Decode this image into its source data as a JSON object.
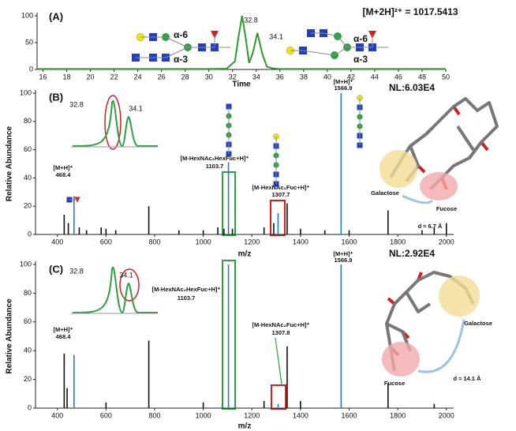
{
  "chart_data": [
    {
      "type": "line",
      "label": "(A)",
      "xlabel": "Time",
      "formula": "[M+2H]²⁺ = 1017.5413",
      "peak_labels": [
        32.8,
        34.1
      ],
      "linkage_labels": [
        "α-6",
        "α-3",
        "α-6",
        "α-3"
      ],
      "color": "#2e9a2e",
      "x": [
        15.5,
        20,
        25,
        30,
        31.5,
        32.2,
        32.5,
        32.8,
        33.1,
        33.4,
        33.7,
        34.1,
        34.5,
        34.9,
        35.4,
        36,
        40,
        45,
        50
      ],
      "values": [
        1,
        1,
        1,
        1,
        1.5,
        15,
        60,
        100,
        60,
        12,
        30,
        68,
        30,
        5,
        2,
        1,
        1,
        1,
        1
      ],
      "xlim": [
        15.5,
        50
      ],
      "xticks": [
        16,
        18,
        20,
        22,
        24,
        26,
        28,
        30,
        32,
        34,
        36,
        38,
        40,
        42,
        44,
        46,
        48,
        50
      ],
      "ylim": [
        0,
        100
      ],
      "yticks": [
        0,
        50,
        100
      ]
    },
    {
      "type": "stick",
      "label": "(B)",
      "nl": "NL:6.03E4",
      "xlabel": "m/z",
      "ylabel": "Relative Abundance",
      "x": [
        428,
        445,
        468.4,
        490,
        520,
        580,
        600,
        640,
        776,
        900,
        1000,
        1060,
        1085,
        1103.7,
        1120,
        1250,
        1290,
        1307.7,
        1345,
        1400,
        1500,
        1566.9,
        1600,
        1760,
        1900,
        1950,
        2000
      ],
      "values": [
        14,
        8,
        27,
        5,
        3,
        5,
        4,
        3,
        20,
        3,
        3,
        5,
        4,
        51,
        4,
        5,
        8,
        15,
        22,
        4,
        3,
        100,
        3,
        17,
        3,
        5,
        8
      ],
      "colors": [
        "#111",
        "#111",
        "#1f7fc4",
        "#111",
        "#111",
        "#111",
        "#111",
        "#111",
        "#111",
        "#111",
        "#111",
        "#111",
        "#111",
        "#1f7fc4",
        "#111",
        "#111",
        "#111",
        "#1f7fc4",
        "#111",
        "#111",
        "#111",
        "#1f7fc4",
        "#111",
        "#111",
        "#111",
        "#111",
        "#111"
      ],
      "xlim": [
        310,
        2030
      ],
      "xticks": [
        400,
        600,
        800,
        1000,
        1200,
        1400,
        1600,
        1800,
        2000
      ],
      "ylim": [
        0,
        100
      ],
      "yticks": [
        0,
        20,
        40,
        60,
        80,
        100
      ],
      "inset_labels": [
        32.8,
        34.1
      ],
      "ions": [
        {
          "label": "[M+H]⁺",
          "mz": 468.4
        },
        {
          "label": "[M-HexNAc₂HexFuc+H]⁺",
          "mz": 1103.7
        },
        {
          "label": "[M-HexNAc₂Fuc+H]⁺",
          "mz": 1307.7
        },
        {
          "label": "[M+H]⁺",
          "mz": 1566.9
        }
      ],
      "structure_labels": [
        "Galactose",
        "Fucose",
        "d ≈ 6.7 Å"
      ]
    },
    {
      "type": "stick",
      "label": "(C)",
      "nl": "NL:2.92E4",
      "xlabel": "m/z",
      "ylabel": "Relative Abundance",
      "x": [
        428,
        440,
        468.4,
        600,
        776,
        1000,
        1103.7,
        1250,
        1307.8,
        1345,
        1400,
        1566.9,
        1760,
        1950
      ],
      "values": [
        38,
        14,
        37,
        4,
        47,
        4,
        100,
        5,
        3,
        43,
        5,
        100,
        17,
        3
      ],
      "colors": [
        "#111",
        "#111",
        "#1f7fc4",
        "#111",
        "#111",
        "#111",
        "#1f7fc4",
        "#111",
        "#1f7fc4",
        "#111",
        "#111",
        "#1f7fc4",
        "#111",
        "#111"
      ],
      "xlim": [
        310,
        2030
      ],
      "xticks": [
        400,
        600,
        800,
        1000,
        1200,
        1400,
        1600,
        1800,
        2000
      ],
      "ylim": [
        0,
        100
      ],
      "yticks": [
        0,
        20,
        40,
        60,
        80,
        100
      ],
      "inset_labels": [
        32.8,
        34.1
      ],
      "ions": [
        {
          "label": "[M+H]⁺",
          "mz": 468.4
        },
        {
          "label": "[M-HexNAc₂HexFuc+H]⁺",
          "mz": 1103.7
        },
        {
          "label": "[M-HexNAc₂Fuc+H]⁺",
          "mz": 1307.8
        },
        {
          "label": "[M+H]⁺",
          "mz": 1566.9
        }
      ],
      "structure_labels": [
        "Galactose",
        "Fucose",
        "d ≈ 14.1 Å"
      ]
    }
  ]
}
